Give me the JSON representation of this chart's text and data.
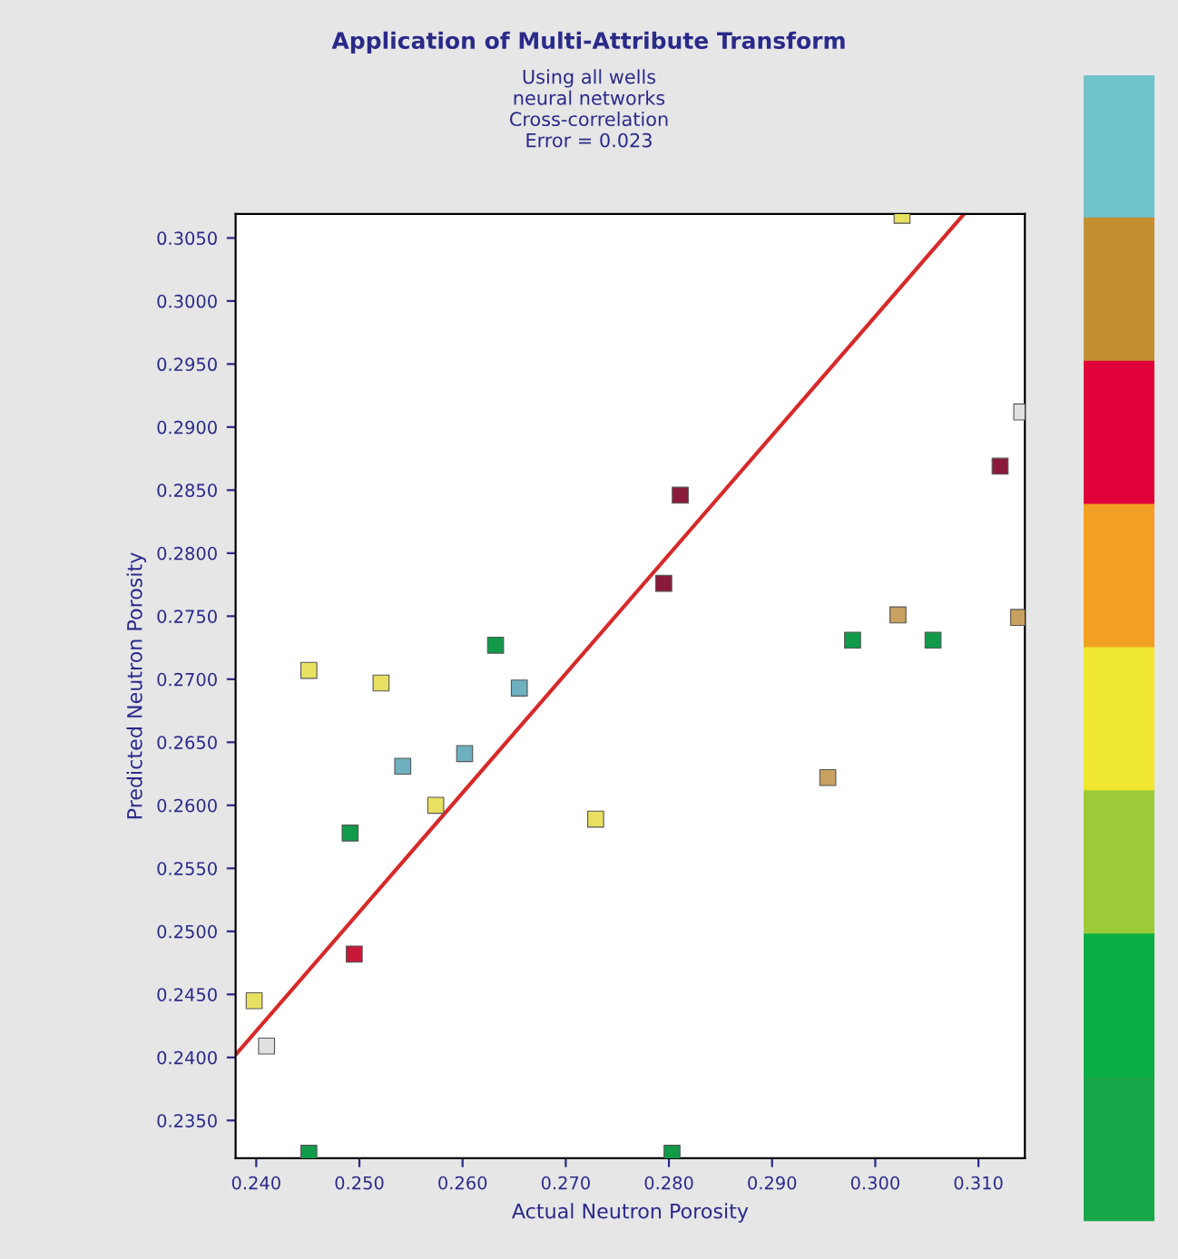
{
  "chart_data": {
    "type": "scatter",
    "title": "Application of Multi-Attribute Transform",
    "subtitle": "Using all wells\nneural networks\nCross-correlation\nError = 0.023",
    "xlabel": "Actual Neutron Porosity",
    "ylabel": "Predicted Neutron Porosity",
    "xlim": [
      0.238,
      0.3145
    ],
    "ylim": [
      0.232,
      0.3069
    ],
    "xticks": [
      {
        "value": 0.24,
        "label": "0.240"
      },
      {
        "value": 0.25,
        "label": "0.250"
      },
      {
        "value": 0.26,
        "label": "0.260"
      },
      {
        "value": 0.27,
        "label": "0.270"
      },
      {
        "value": 0.28,
        "label": "0.280"
      },
      {
        "value": 0.29,
        "label": "0.290"
      },
      {
        "value": 0.3,
        "label": "0.300"
      },
      {
        "value": 0.31,
        "label": "0.310"
      }
    ],
    "yticks": [
      {
        "value": 0.235,
        "label": "0.2350"
      },
      {
        "value": 0.24,
        "label": "0.2400"
      },
      {
        "value": 0.245,
        "label": "0.2450"
      },
      {
        "value": 0.25,
        "label": "0.2500"
      },
      {
        "value": 0.255,
        "label": "0.2550"
      },
      {
        "value": 0.26,
        "label": "0.2600"
      },
      {
        "value": 0.265,
        "label": "0.2650"
      },
      {
        "value": 0.27,
        "label": "0.2700"
      },
      {
        "value": 0.275,
        "label": "0.2750"
      },
      {
        "value": 0.28,
        "label": "0.2800"
      },
      {
        "value": 0.285,
        "label": "0.2850"
      },
      {
        "value": 0.29,
        "label": "0.2900"
      },
      {
        "value": 0.295,
        "label": "0.2950"
      },
      {
        "value": 0.3,
        "label": "0.3000"
      },
      {
        "value": 0.305,
        "label": "0.3050"
      }
    ],
    "grid": false,
    "legend": false,
    "marker": "square",
    "series": [
      {
        "type": "line",
        "marker": "none",
        "color": "#d62a2a",
        "x": [
          0.2381,
          0.3086
        ],
        "values": [
          0.2403,
          0.3069
        ]
      },
      {
        "color": "#e8e060",
        "x": [
          0.2398,
          0.2451,
          0.2521,
          0.2574,
          0.2729,
          0.3026
        ],
        "values": [
          0.2445,
          0.2707,
          0.2697,
          0.26,
          0.2589,
          0.3068
        ]
      },
      {
        "color": "#e0e0e0",
        "x": [
          0.241,
          0.3142
        ],
        "values": [
          0.2409,
          0.2912
        ]
      },
      {
        "color": "#119a4a",
        "x": [
          0.2451,
          0.2491,
          0.2632,
          0.2803,
          0.2978,
          0.3056
        ],
        "values": [
          0.2324,
          0.2578,
          0.2727,
          0.2324,
          0.2731,
          0.2731
        ]
      },
      {
        "color": "#c8183a",
        "x": [
          0.2495
        ],
        "values": [
          0.2482
        ]
      },
      {
        "color": "#6fb0c0",
        "x": [
          0.2542,
          0.2602,
          0.2655
        ],
        "values": [
          0.2631,
          0.2641,
          0.2693
        ]
      },
      {
        "color": "#8a1a3a",
        "x": [
          0.2795,
          0.2811,
          0.3121
        ],
        "values": [
          0.2776,
          0.2846,
          0.2869
        ]
      },
      {
        "color": "#c8a060",
        "x": [
          0.2954,
          0.3022,
          0.3139
        ],
        "values": [
          0.2622,
          0.2751,
          0.2749
        ]
      }
    ]
  }
}
